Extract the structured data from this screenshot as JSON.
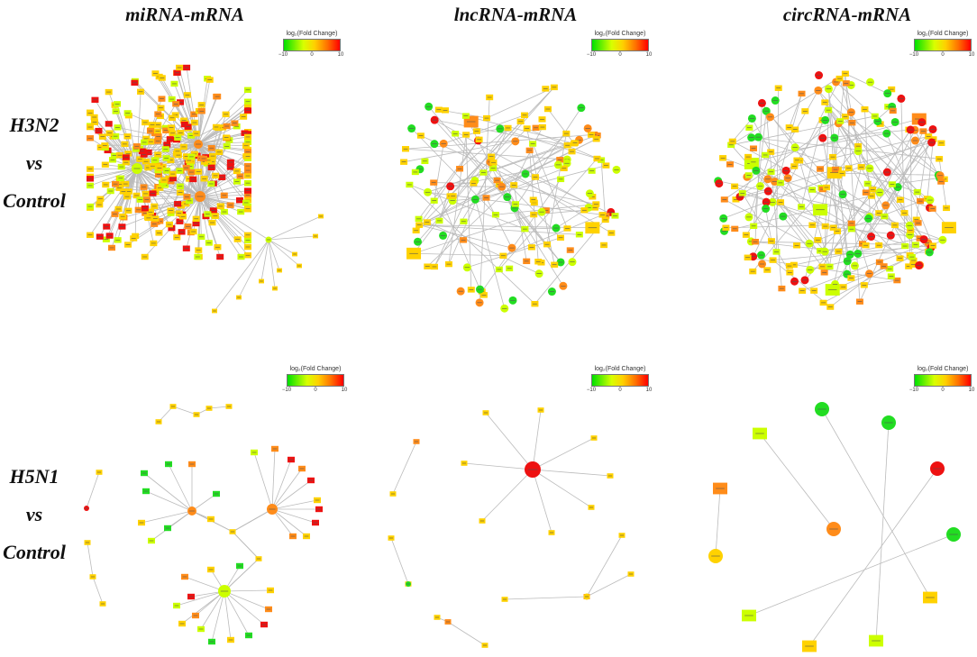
{
  "columns": [
    "miRNA-mRNA",
    "lncRNA-mRNA",
    "circRNA-mRNA"
  ],
  "rows": [
    {
      "line1": "H3N2",
      "line2": "vs",
      "line3": "Control"
    },
    {
      "line1": "H5N1",
      "line2": "vs",
      "line3": "Control"
    }
  ],
  "legend": {
    "title": "log₂(Fold Change)",
    "min": "−10",
    "mid": "0",
    "max": "10"
  },
  "palette": {
    "green": "#22dd22",
    "yellow_green": "#ccff00",
    "yellow": "#ffd200",
    "orange": "#ff8c1a",
    "red": "#ee1111",
    "edge": "#bbbbbb"
  }
}
